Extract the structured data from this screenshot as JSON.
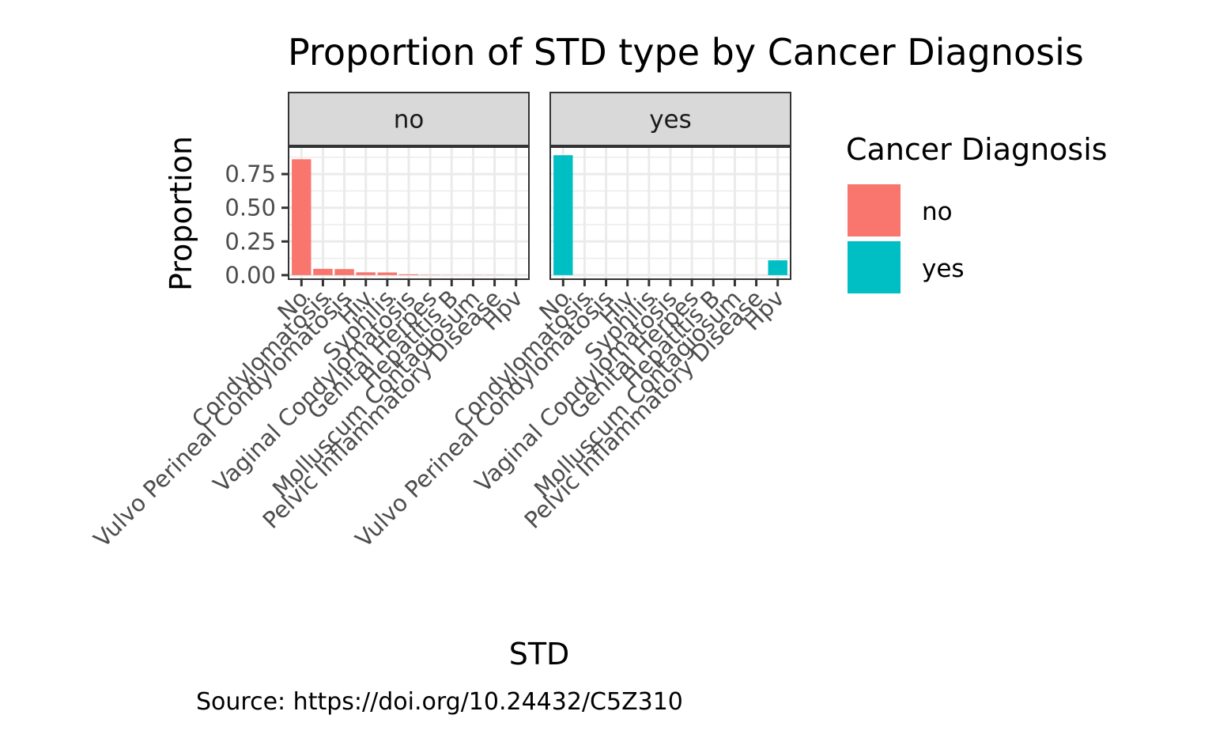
{
  "chart_data": {
    "type": "bar",
    "title": "Proportion of STD type by Cancer Diagnosis",
    "xlabel": "STD",
    "ylabel": "Proportion",
    "caption": "Source: https://doi.org/10.24432/C5Z310",
    "ylim": [
      -0.03,
      0.95
    ],
    "yticks": [
      "0.00",
      "0.25",
      "0.50",
      "0.75"
    ],
    "ytick_values": [
      0,
      0.25,
      0.5,
      0.75
    ],
    "grid": true,
    "categories": [
      "No",
      "Condylomatosis",
      "Vulvo Perineal Condylomatosis",
      "Hiv",
      "Syphilis",
      "Vaginal Condylomatosis",
      "Genital Herpes",
      "Hepatitis B",
      "Molluscum Contagiosum",
      "Pelvic Inflammatory Disease",
      "Hpv"
    ],
    "legend": {
      "title": "Cancer Diagnosis",
      "position": "right",
      "entries": [
        {
          "label": "no",
          "color": "#F8766D"
        },
        {
          "label": "yes",
          "color": "#00BFC4"
        }
      ]
    },
    "panels": [
      {
        "label": "no",
        "color": "#F8766D",
        "values": [
          0.86,
          0.047,
          0.045,
          0.021,
          0.02,
          0.006,
          0.002,
          0.001,
          0.001,
          0.001,
          0.0
        ]
      },
      {
        "label": "yes",
        "color": "#00BFC4",
        "values": [
          0.89,
          0.0,
          0.0,
          0.0,
          0.0,
          0.0,
          0.0,
          0.0,
          0.0,
          0.0,
          0.11
        ]
      }
    ]
  }
}
